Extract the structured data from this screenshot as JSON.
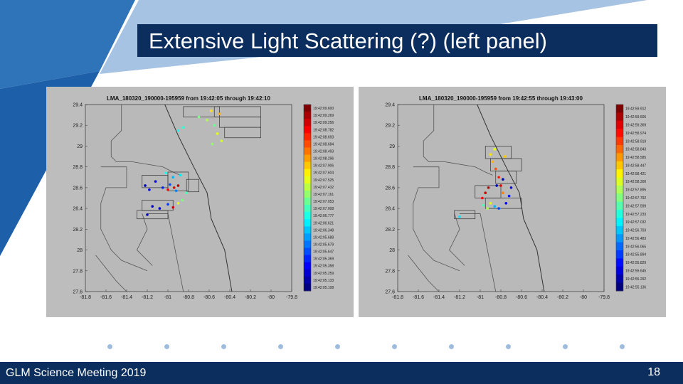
{
  "slide": {
    "title": "Extensive Light Scattering (?) (left panel)",
    "footer_text": "GLM Science Meeting 2019",
    "page_number": "18",
    "colors": {
      "navy": "#0b2e5f",
      "blue": "#2f73b8",
      "light_blue": "#a7c3e3",
      "panel_gray": "#bdbdbd",
      "dot_color": "#9fbcdf"
    },
    "decor_dot_count": 10
  },
  "chart_data": [
    {
      "type": "scatter",
      "title": "LMA_180320_190000-195959 from 19:42:05 through 19:42:10",
      "x_ticks": [
        "-81.8",
        "-81.6",
        "-81.4",
        "-81.2",
        "-81",
        "-80.8",
        "-80.6",
        "-80.4",
        "-80.2",
        "-80",
        "-79.8"
      ],
      "y_ticks": [
        "29.4",
        "29.2",
        "29",
        "28.8",
        "28.6",
        "28.4",
        "28.2",
        "28",
        "27.8",
        "27.6"
      ],
      "xlim": [
        -81.8,
        -79.8
      ],
      "ylim": [
        27.6,
        29.4
      ],
      "grid": false,
      "colorbar_labels": [
        "19:42:09.600",
        "19:42:09.269",
        "19:42:09.256",
        "19:42:08.782",
        "19:42:08.693",
        "19:42:08.684",
        "19:42:08.493",
        "19:42:08.296",
        "19:42:07.906",
        "19:42:07.604",
        "19:42:07.525",
        "19:42:07.432",
        "19:42:07.161",
        "19:42:07.053",
        "19:42:07.008",
        "19:42:06.777",
        "19:42:06.621",
        "19:42:06.348",
        "19:42:05.688",
        "19:42:05.679",
        "19:42:05.647",
        "19:42:05.369",
        "19:42:05.358",
        "19:42:05.259",
        "19:42:05.133",
        "19:42:05.108"
      ],
      "points": [
        {
          "x": -81.22,
          "y": 28.62,
          "c": 0.05
        },
        {
          "x": -81.18,
          "y": 28.58,
          "c": 0.1
        },
        {
          "x": -81.12,
          "y": 28.66,
          "c": 0.12
        },
        {
          "x": -81.05,
          "y": 28.6,
          "c": 0.15
        },
        {
          "x": -80.98,
          "y": 28.63,
          "c": 0.2
        },
        {
          "x": -80.92,
          "y": 28.57,
          "c": 0.25
        },
        {
          "x": -80.95,
          "y": 28.7,
          "c": 0.3
        },
        {
          "x": -80.88,
          "y": 28.72,
          "c": 0.35
        },
        {
          "x": -81.02,
          "y": 28.74,
          "c": 0.4
        },
        {
          "x": -80.9,
          "y": 28.62,
          "c": 0.95
        },
        {
          "x": -80.94,
          "y": 28.6,
          "c": 0.9
        },
        {
          "x": -81.0,
          "y": 28.58,
          "c": 0.88
        },
        {
          "x": -81.15,
          "y": 28.42,
          "c": 0.08
        },
        {
          "x": -81.08,
          "y": 28.4,
          "c": 0.12
        },
        {
          "x": -81.0,
          "y": 28.44,
          "c": 0.18
        },
        {
          "x": -80.95,
          "y": 28.41,
          "c": 0.92
        },
        {
          "x": -80.9,
          "y": 28.45,
          "c": 0.6
        },
        {
          "x": -81.2,
          "y": 28.34,
          "c": 0.05
        },
        {
          "x": -80.86,
          "y": 28.48,
          "c": 0.5
        },
        {
          "x": -80.82,
          "y": 28.55,
          "c": 0.45
        },
        {
          "x": -80.7,
          "y": 29.28,
          "c": 0.5
        },
        {
          "x": -80.62,
          "y": 29.25,
          "c": 0.55
        },
        {
          "x": -80.58,
          "y": 29.34,
          "c": 0.65
        },
        {
          "x": -80.55,
          "y": 29.2,
          "c": 0.48
        },
        {
          "x": -80.52,
          "y": 29.12,
          "c": 0.6
        },
        {
          "x": -80.57,
          "y": 29.02,
          "c": 0.52
        },
        {
          "x": -80.9,
          "y": 29.15,
          "c": 0.4
        },
        {
          "x": -80.85,
          "y": 29.18,
          "c": 0.42
        },
        {
          "x": -80.5,
          "y": 29.31,
          "c": 0.7
        },
        {
          "x": -80.48,
          "y": 29.05,
          "c": 0.58
        }
      ]
    },
    {
      "type": "scatter",
      "title": "LMA_180320_190000-195959 from 19:42:55 through 19:43:00",
      "x_ticks": [
        "-81.8",
        "-81.6",
        "-81.4",
        "-81.2",
        "-81",
        "-80.8",
        "-80.6",
        "-80.4",
        "-80.2",
        "-80",
        "-79.8"
      ],
      "y_ticks": [
        "29.4",
        "29.2",
        "29",
        "28.8",
        "28.6",
        "28.4",
        "28.2",
        "28",
        "27.8",
        "27.6"
      ],
      "xlim": [
        -81.8,
        -79.8
      ],
      "ylim": [
        27.6,
        29.4
      ],
      "grid": false,
      "colorbar_labels": [
        "19:42:59.912",
        "19:42:59.606",
        "19:42:59.369",
        "19:42:58.974",
        "19:42:58.919",
        "19:42:58.843",
        "19:42:58.585",
        "19:42:58.447",
        "19:42:58.421",
        "19:42:58.300",
        "19:42:57.895",
        "19:42:57.792",
        "19:42:57.599",
        "19:42:57.233",
        "19:42:57.032",
        "19:42:56.703",
        "19:42:56.483",
        "19:42:56.065",
        "19:42:55.894",
        "19:42:55.829",
        "19:42:55.645",
        "19:42:55.292",
        "19:42:55.136"
      ],
      "points": [
        {
          "x": -80.9,
          "y": 28.92,
          "c": 0.65
        },
        {
          "x": -80.88,
          "y": 28.85,
          "c": 0.7
        },
        {
          "x": -80.85,
          "y": 28.78,
          "c": 0.8
        },
        {
          "x": -80.82,
          "y": 28.7,
          "c": 0.85
        },
        {
          "x": -80.8,
          "y": 28.62,
          "c": 0.9
        },
        {
          "x": -80.78,
          "y": 28.55,
          "c": 0.75
        },
        {
          "x": -80.92,
          "y": 28.6,
          "c": 0.95
        },
        {
          "x": -80.95,
          "y": 28.55,
          "c": 0.92
        },
        {
          "x": -80.98,
          "y": 28.5,
          "c": 0.88
        },
        {
          "x": -80.9,
          "y": 28.45,
          "c": 0.6
        },
        {
          "x": -80.86,
          "y": 28.42,
          "c": 0.3
        },
        {
          "x": -80.82,
          "y": 28.4,
          "c": 0.2
        },
        {
          "x": -80.75,
          "y": 28.45,
          "c": 0.12
        },
        {
          "x": -80.72,
          "y": 28.52,
          "c": 0.15
        },
        {
          "x": -80.7,
          "y": 28.6,
          "c": 0.1
        },
        {
          "x": -80.78,
          "y": 28.68,
          "c": 0.05
        },
        {
          "x": -80.93,
          "y": 28.4,
          "c": 0.55
        },
        {
          "x": -80.97,
          "y": 28.43,
          "c": 0.45
        },
        {
          "x": -81.2,
          "y": 28.32,
          "c": 0.35
        },
        {
          "x": -80.86,
          "y": 28.97,
          "c": 0.6
        },
        {
          "x": -80.76,
          "y": 28.9,
          "c": 0.68
        },
        {
          "x": -80.84,
          "y": 28.62,
          "c": 0.08
        }
      ]
    }
  ]
}
